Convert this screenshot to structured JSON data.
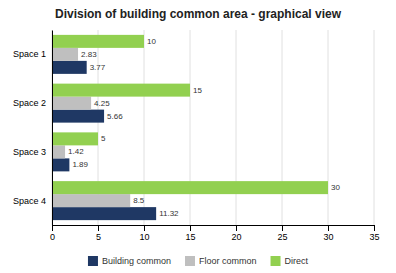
{
  "chart_data": {
    "type": "bar",
    "orientation": "horizontal",
    "title": "Division of building common area - graphical view",
    "categories": [
      "Space 1",
      "Space 2",
      "Space 3",
      "Space 4"
    ],
    "series": [
      {
        "name": "Building common",
        "color": "#1f3864",
        "values": [
          3.77,
          5.66,
          1.89,
          11.32
        ]
      },
      {
        "name": "Floor common",
        "color": "#bfbfbf",
        "values": [
          2.83,
          4.25,
          1.42,
          8.5
        ]
      },
      {
        "name": "Direct",
        "color": "#92d050",
        "values": [
          10,
          15,
          5,
          30
        ]
      }
    ],
    "xlim": [
      0,
      35
    ],
    "xticks": [
      0,
      5,
      10,
      15,
      20,
      25,
      30,
      35
    ],
    "grid": true,
    "data_labels": true,
    "legend": "bottom"
  }
}
